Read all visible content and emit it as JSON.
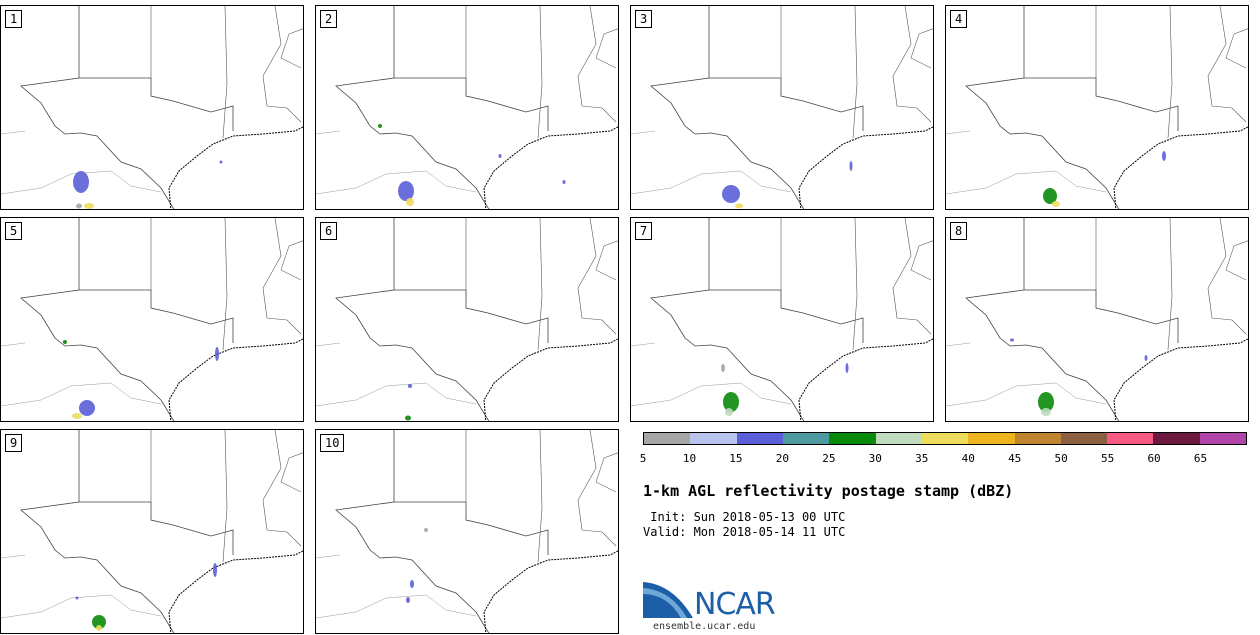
{
  "panels": [
    {
      "label": "1"
    },
    {
      "label": "2"
    },
    {
      "label": "3"
    },
    {
      "label": "4"
    },
    {
      "label": "5"
    },
    {
      "label": "6"
    },
    {
      "label": "7"
    },
    {
      "label": "8"
    },
    {
      "label": "9"
    },
    {
      "label": "10"
    }
  ],
  "colorbar": {
    "colors": [
      "#a6a6a6",
      "#b8c4ec",
      "#5a5fd8",
      "#4e9aa0",
      "#0a8a0a",
      "#bfdcbe",
      "#eedc5c",
      "#eeb420",
      "#bf8430",
      "#8c5f40",
      "#f65982",
      "#6e1a40",
      "#b044a8"
    ],
    "ticks": [
      "5",
      "10",
      "15",
      "20",
      "25",
      "30",
      "35",
      "40",
      "45",
      "50",
      "55",
      "60",
      "65"
    ]
  },
  "title": "1-km AGL reflectivity postage stamp (dBZ)",
  "init": " Init: Sun 2018-05-13 00 UTC",
  "valid": "Valid: Mon 2018-05-14 11 UTC",
  "logo": {
    "text": "NCAR",
    "url": "ensemble.ucar.edu",
    "color": "#1d5fa6"
  }
}
